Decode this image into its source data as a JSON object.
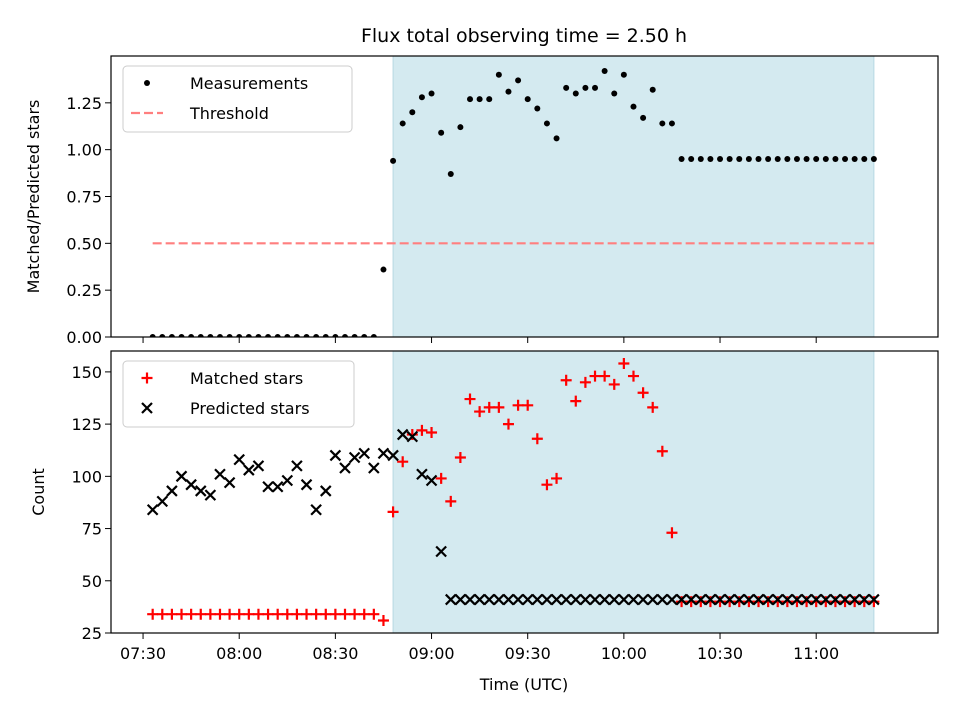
{
  "chart_data": {
    "title": "Flux total observing time = 2.50 h",
    "xlabel": "Time (UTC)",
    "x_ticks": [
      "07:30",
      "08:00",
      "08:30",
      "09:00",
      "09:30",
      "10:00",
      "10:30",
      "11:00"
    ],
    "observing_window": {
      "start": "08:48",
      "end": "11:18",
      "color": "#d4eaf0"
    },
    "times": [
      "07:33",
      "07:36",
      "07:39",
      "07:42",
      "07:45",
      "07:48",
      "07:51",
      "07:54",
      "07:57",
      "08:00",
      "08:03",
      "08:06",
      "08:09",
      "08:12",
      "08:15",
      "08:18",
      "08:21",
      "08:24",
      "08:27",
      "08:30",
      "08:33",
      "08:36",
      "08:39",
      "08:42",
      "08:45",
      "08:48",
      "08:51",
      "08:54",
      "08:57",
      "09:00",
      "09:03",
      "09:06",
      "09:09",
      "09:12",
      "09:15",
      "09:18",
      "09:21",
      "09:24",
      "09:27",
      "09:30",
      "09:33",
      "09:36",
      "09:39",
      "09:42",
      "09:45",
      "09:48",
      "09:51",
      "09:54",
      "09:57",
      "10:00",
      "10:03",
      "10:06",
      "10:09",
      "10:12",
      "10:15",
      "10:18",
      "10:21",
      "10:24",
      "10:27",
      "10:30",
      "10:33",
      "10:36",
      "10:39",
      "10:42",
      "10:45",
      "10:48",
      "10:51",
      "10:54",
      "10:57",
      "11:00",
      "11:03",
      "11:06",
      "11:09",
      "11:12",
      "11:15",
      "11:18"
    ],
    "panels": [
      {
        "type": "scatter",
        "ylabel": "Matched/Predicted stars",
        "ylim": [
          0,
          1.5
        ],
        "yticks": [
          "0.00",
          "0.25",
          "0.50",
          "0.75",
          "1.00",
          "1.25"
        ],
        "legend_position": "top-left",
        "series": [
          {
            "name": "Measurements",
            "marker": "dot",
            "color": "#000000",
            "x": [
              "07:33",
              "07:36",
              "07:39",
              "07:42",
              "07:45",
              "07:48",
              "07:51",
              "07:54",
              "07:57",
              "08:00",
              "08:03",
              "08:06",
              "08:09",
              "08:12",
              "08:15",
              "08:18",
              "08:21",
              "08:24",
              "08:27",
              "08:30",
              "08:33",
              "08:36",
              "08:39",
              "08:42",
              "08:45",
              "08:48",
              "08:51",
              "08:54",
              "08:57",
              "09:00",
              "09:03",
              "09:06",
              "09:09",
              "09:12",
              "09:15",
              "09:18",
              "09:21",
              "09:24",
              "09:27",
              "09:30",
              "09:33",
              "09:36",
              "09:39",
              "09:42",
              "09:45",
              "09:48",
              "09:51",
              "09:54",
              "09:57",
              "10:00",
              "10:03",
              "10:06",
              "10:09",
              "10:12",
              "10:15",
              "10:18",
              "10:21",
              "10:24",
              "10:27",
              "10:30",
              "10:33",
              "10:36",
              "10:39",
              "10:42",
              "10:45",
              "10:48",
              "10:51",
              "10:54",
              "10:57",
              "11:00",
              "11:03",
              "11:06",
              "11:09",
              "11:12",
              "11:15",
              "11:18"
            ],
            "y": [
              0,
              0,
              0,
              0,
              0,
              0,
              0,
              0,
              0,
              0,
              0,
              0,
              0,
              0,
              0,
              0,
              0,
              0,
              0,
              0,
              0,
              0,
              0,
              0,
              0.36,
              0.94,
              1.14,
              1.2,
              1.28,
              1.3,
              1.09,
              0.87,
              1.12,
              1.27,
              1.27,
              1.27,
              1.4,
              1.31,
              1.37,
              1.27,
              1.22,
              1.14,
              1.06,
              1.33,
              1.3,
              1.33,
              1.33,
              1.42,
              1.3,
              1.4,
              1.23,
              1.17,
              1.32,
              1.14,
              1.14,
              0.95,
              0.95,
              0.95,
              0.95,
              0.95,
              0.95,
              0.95,
              0.95,
              0.95,
              0.95,
              0.95,
              0.95,
              0.95,
              0.95,
              0.95,
              0.95,
              0.95,
              0.95,
              0.95,
              0.95,
              0.95
            ]
          },
          {
            "name": "Threshold",
            "marker": "dashed-line",
            "color": "#ff7f7f",
            "x": [
              "07:33",
              "11:18"
            ],
            "y": [
              0.5,
              0.5
            ]
          }
        ]
      },
      {
        "type": "scatter",
        "ylabel": "Count",
        "ylim": [
          25,
          160
        ],
        "yticks": [
          "25",
          "50",
          "75",
          "100",
          "125",
          "150"
        ],
        "legend_position": "top-left",
        "series": [
          {
            "name": "Matched stars",
            "marker": "plus",
            "color": "#ff0000",
            "x": [
              "07:33",
              "07:36",
              "07:39",
              "07:42",
              "07:45",
              "07:48",
              "07:51",
              "07:54",
              "07:57",
              "08:00",
              "08:03",
              "08:06",
              "08:09",
              "08:12",
              "08:15",
              "08:18",
              "08:21",
              "08:24",
              "08:27",
              "08:30",
              "08:33",
              "08:36",
              "08:39",
              "08:42",
              "08:45",
              "08:48",
              "08:51",
              "08:54",
              "08:57",
              "09:00",
              "09:03",
              "09:06",
              "09:09",
              "09:12",
              "09:15",
              "09:18",
              "09:21",
              "09:24",
              "09:27",
              "09:30",
              "09:33",
              "09:36",
              "09:39",
              "09:42",
              "09:45",
              "09:48",
              "09:51",
              "09:54",
              "09:57",
              "10:00",
              "10:03",
              "10:06",
              "10:09",
              "10:12",
              "10:15",
              "10:18",
              "10:21",
              "10:24",
              "10:27",
              "10:30",
              "10:33",
              "10:36",
              "10:39",
              "10:42",
              "10:45",
              "10:48",
              "10:51",
              "10:54",
              "10:57",
              "11:00",
              "11:03",
              "11:06",
              "11:09",
              "11:12",
              "11:15",
              "11:18"
            ],
            "y": [
              34,
              34,
              34,
              34,
              34,
              34,
              34,
              34,
              34,
              34,
              34,
              34,
              34,
              34,
              34,
              34,
              34,
              34,
              34,
              34,
              34,
              34,
              34,
              34,
              31,
              83,
              107,
              120,
              122,
              121,
              99,
              88,
              109,
              137,
              131,
              133,
              133,
              125,
              134,
              134,
              118,
              96,
              99,
              146,
              136,
              145,
              148,
              148,
              144,
              154,
              148,
              140,
              133,
              112,
              73,
              40,
              40,
              40,
              40,
              40,
              40,
              40,
              40,
              40,
              40,
              40,
              40,
              40,
              40,
              40,
              40,
              40,
              40,
              40,
              40,
              40
            ]
          },
          {
            "name": "Predicted stars",
            "marker": "x",
            "color": "#000000",
            "x": [
              "07:33",
              "07:36",
              "07:39",
              "07:42",
              "07:45",
              "07:48",
              "07:51",
              "07:54",
              "07:57",
              "08:00",
              "08:03",
              "08:06",
              "08:09",
              "08:12",
              "08:15",
              "08:18",
              "08:21",
              "08:24",
              "08:27",
              "08:30",
              "08:33",
              "08:36",
              "08:39",
              "08:42",
              "08:45",
              "08:48",
              "08:51",
              "08:54",
              "08:57",
              "09:00",
              "09:03",
              "09:06",
              "09:09",
              "09:12",
              "09:15",
              "09:18",
              "09:21",
              "09:24",
              "09:27",
              "09:30",
              "09:33",
              "09:36",
              "09:39",
              "09:42",
              "09:45",
              "09:48",
              "09:51",
              "09:54",
              "09:57",
              "10:00",
              "10:03",
              "10:06",
              "10:09",
              "10:12",
              "10:15",
              "10:18",
              "10:21",
              "10:24",
              "10:27",
              "10:30",
              "10:33",
              "10:36",
              "10:39",
              "10:42",
              "10:45",
              "10:48",
              "10:51",
              "10:54",
              "10:57",
              "11:00",
              "11:03",
              "11:06",
              "11:09",
              "11:12",
              "11:15",
              "11:18"
            ],
            "y": [
              84,
              88,
              93,
              100,
              96,
              93,
              91,
              101,
              97,
              108,
              103,
              105,
              95,
              95,
              98,
              105,
              96,
              84,
              93,
              110,
              104,
              109,
              111,
              104,
              111,
              110,
              120,
              119,
              101,
              98,
              64,
              41,
              41,
              41,
              41,
              41,
              41,
              41,
              41,
              41,
              41,
              41,
              41,
              41,
              41,
              41,
              41,
              41,
              41,
              41,
              41,
              41,
              41,
              41,
              41,
              41,
              41,
              41,
              41,
              41,
              41,
              41,
              41,
              41,
              41,
              41,
              41,
              41,
              41,
              41,
              41,
              41,
              41,
              41,
              41,
              41
            ]
          }
        ]
      }
    ]
  }
}
